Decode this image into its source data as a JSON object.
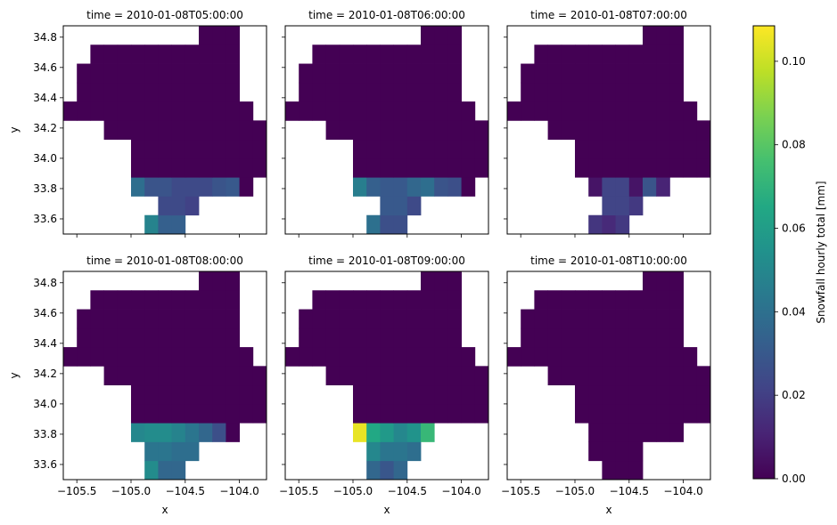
{
  "chart_data": {
    "type": "heatmap",
    "colormap": "viridis",
    "x_ticks": [
      -105.5,
      -105.0,
      -104.5,
      -104.0
    ],
    "x_tick_labels": [
      "−105.5",
      "−105.0",
      "−104.5",
      "−104.0"
    ],
    "y_ticks": [
      33.6,
      33.8,
      34.0,
      34.2,
      34.4,
      34.6,
      34.8
    ],
    "y_tick_labels": [
      "33.6",
      "33.8",
      "34.0",
      "34.2",
      "34.4",
      "34.6",
      "34.8"
    ],
    "xlabel": "x",
    "ylabel": "y",
    "xlim": [
      -105.625,
      -103.75
    ],
    "ylim": [
      33.5,
      34.875
    ],
    "grid_x0": -105.625,
    "grid_y0": 33.5,
    "cell_dx": 0.125,
    "cell_dy": 0.125,
    "colorbar": {
      "label": "Snowfall hourly total [mm]",
      "range": [
        0,
        0.1085
      ],
      "ticks": [
        0.0,
        0.02,
        0.04,
        0.06,
        0.08,
        0.1
      ],
      "tick_labels": [
        "0.00",
        "0.02",
        "0.04",
        "0.06",
        "0.08",
        "0.10"
      ]
    },
    "panels": [
      {
        "title": "time = 2010-01-08T05:00:00",
        "rows": [
          [
            null,
            null,
            null,
            null,
            null,
            null,
            0.048,
            0.033,
            0.033,
            null,
            null,
            null,
            null,
            null,
            null
          ],
          [
            null,
            null,
            null,
            null,
            null,
            null,
            null,
            0.024,
            0.024,
            0.021,
            null,
            null,
            null,
            null,
            null
          ],
          [
            null,
            null,
            null,
            null,
            null,
            0.039,
            0.028,
            0.028,
            0.024,
            0.024,
            0.024,
            0.028,
            0.03,
            0,
            null
          ],
          [
            null,
            null,
            null,
            null,
            null,
            0,
            0,
            0,
            0,
            0,
            0,
            0,
            0,
            0,
            0
          ],
          [
            null,
            null,
            null,
            null,
            null,
            0,
            0,
            0,
            0,
            0,
            0,
            0,
            0,
            0,
            0
          ],
          [
            null,
            null,
            null,
            0,
            0,
            0,
            0,
            0,
            0,
            0,
            0,
            0,
            0,
            0,
            0
          ],
          [
            0,
            0,
            0,
            0,
            0,
            0,
            0,
            0,
            0,
            0,
            0,
            0,
            0,
            0,
            null
          ],
          [
            null,
            0,
            0,
            0,
            0,
            0,
            0,
            0,
            0,
            0,
            0,
            0,
            0,
            null,
            null
          ],
          [
            null,
            0,
            0,
            0,
            0,
            0,
            0,
            0,
            0,
            0,
            0,
            0,
            0,
            null,
            null
          ],
          [
            null,
            null,
            0,
            0,
            0,
            0,
            0,
            0,
            0,
            0,
            0,
            0,
            0,
            null,
            null
          ],
          [
            null,
            null,
            null,
            null,
            null,
            null,
            null,
            null,
            null,
            null,
            0,
            0,
            0,
            null,
            null
          ]
        ]
      },
      {
        "title": "time = 2010-01-08T06:00:00",
        "rows": [
          [
            null,
            null,
            null,
            null,
            null,
            null,
            0.04,
            0.026,
            0.026,
            null,
            null,
            null,
            null,
            null,
            null
          ],
          [
            null,
            null,
            null,
            null,
            null,
            null,
            null,
            0.03,
            0.03,
            0.024,
            null,
            null,
            null,
            null,
            null
          ],
          [
            null,
            null,
            null,
            null,
            null,
            0.046,
            0.033,
            0.03,
            0.03,
            0.036,
            0.039,
            0.028,
            0.026,
            0,
            null
          ],
          [
            null,
            null,
            null,
            null,
            null,
            0,
            0,
            0,
            0,
            0,
            0,
            0,
            0,
            0,
            0
          ],
          [
            null,
            null,
            null,
            null,
            null,
            0,
            0,
            0,
            0,
            0,
            0,
            0,
            0,
            0,
            0
          ],
          [
            null,
            null,
            null,
            0,
            0,
            0,
            0,
            0,
            0,
            0,
            0,
            0,
            0,
            0,
            0
          ],
          [
            0,
            0,
            0,
            0,
            0,
            0,
            0,
            0,
            0,
            0,
            0,
            0,
            0,
            0,
            null
          ],
          [
            null,
            0,
            0,
            0,
            0,
            0,
            0,
            0,
            0,
            0,
            0,
            0,
            0,
            null,
            null
          ],
          [
            null,
            0,
            0,
            0,
            0,
            0,
            0,
            0,
            0,
            0,
            0,
            0,
            0,
            null,
            null
          ],
          [
            null,
            null,
            0,
            0,
            0,
            0,
            0,
            0,
            0,
            0,
            0,
            0,
            0,
            null,
            null
          ],
          [
            null,
            null,
            null,
            null,
            null,
            null,
            null,
            null,
            null,
            null,
            0,
            0,
            0,
            null,
            null
          ]
        ]
      },
      {
        "title": "time = 2010-01-08T07:00:00",
        "rows": [
          [
            null,
            null,
            null,
            null,
            null,
            null,
            0.017,
            0.013,
            0.018,
            null,
            null,
            null,
            null,
            null,
            null
          ],
          [
            null,
            null,
            null,
            null,
            null,
            null,
            null,
            0.022,
            0.022,
            0.018,
            null,
            null,
            null,
            null,
            null
          ],
          [
            null,
            null,
            null,
            null,
            null,
            null,
            0.006,
            0.022,
            0.022,
            0.006,
            0.028,
            0.011,
            null,
            null,
            null
          ],
          [
            null,
            null,
            null,
            null,
            null,
            0,
            0,
            0,
            0,
            0,
            0,
            0,
            0,
            0,
            0
          ],
          [
            null,
            null,
            null,
            null,
            null,
            0,
            0,
            0,
            0,
            0,
            0,
            0,
            0,
            0,
            0
          ],
          [
            null,
            null,
            null,
            0,
            0,
            0,
            0,
            0,
            0,
            0,
            0,
            0,
            0,
            0,
            0
          ],
          [
            0,
            0,
            0,
            0,
            0,
            0,
            0,
            0,
            0,
            0,
            0,
            0,
            0,
            0,
            null
          ],
          [
            null,
            0,
            0,
            0,
            0,
            0,
            0,
            0,
            0,
            0,
            0,
            0,
            0,
            null,
            null
          ],
          [
            null,
            0,
            0,
            0,
            0,
            0,
            0,
            0,
            0,
            0,
            0,
            0,
            0,
            null,
            null
          ],
          [
            null,
            null,
            0,
            0,
            0,
            0,
            0,
            0,
            0,
            0,
            0,
            0,
            0,
            null,
            null
          ],
          [
            null,
            null,
            null,
            null,
            null,
            null,
            null,
            null,
            null,
            null,
            0,
            0,
            0,
            null,
            null
          ]
        ]
      },
      {
        "title": "time = 2010-01-08T08:00:00",
        "rows": [
          [
            null,
            null,
            null,
            null,
            null,
            null,
            0.052,
            0.036,
            0.036,
            null,
            null,
            null,
            null,
            null,
            null
          ],
          [
            null,
            null,
            null,
            null,
            null,
            null,
            0.042,
            0.042,
            0.039,
            0.039,
            null,
            null,
            null,
            null,
            null
          ],
          [
            null,
            null,
            null,
            null,
            null,
            0.05,
            0.052,
            0.052,
            0.048,
            0.042,
            0.036,
            0.026,
            0,
            null,
            null
          ],
          [
            null,
            null,
            null,
            null,
            null,
            0,
            0,
            0,
            0,
            0,
            0,
            0,
            0,
            0,
            0
          ],
          [
            null,
            null,
            null,
            null,
            null,
            0,
            0,
            0,
            0,
            0,
            0,
            0,
            0,
            0,
            0
          ],
          [
            null,
            null,
            null,
            0,
            0,
            0,
            0,
            0,
            0,
            0,
            0,
            0,
            0,
            0,
            0
          ],
          [
            0,
            0,
            0,
            0,
            0,
            0,
            0,
            0,
            0,
            0,
            0,
            0,
            0,
            0,
            null
          ],
          [
            null,
            0,
            0,
            0,
            0,
            0,
            0,
            0,
            0,
            0,
            0,
            0,
            0,
            null,
            null
          ],
          [
            null,
            0,
            0,
            0,
            0,
            0,
            0,
            0,
            0,
            0,
            0,
            0,
            0,
            null,
            null
          ],
          [
            null,
            null,
            0,
            0,
            0,
            0,
            0,
            0,
            0,
            0,
            0,
            0,
            0,
            null,
            null
          ],
          [
            null,
            null,
            null,
            null,
            null,
            null,
            null,
            null,
            null,
            null,
            0,
            0,
            0,
            null,
            null
          ]
        ]
      },
      {
        "title": "time = 2010-01-08T09:00:00",
        "rows": [
          [
            null,
            null,
            null,
            null,
            null,
            null,
            0.036,
            0.029,
            0.036,
            null,
            null,
            null,
            null,
            null,
            null
          ],
          [
            null,
            null,
            null,
            null,
            null,
            null,
            0.05,
            0.042,
            0.042,
            0.039,
            null,
            null,
            null,
            null,
            null
          ],
          [
            null,
            null,
            null,
            null,
            null,
            0.105,
            0.065,
            0.058,
            0.05,
            0.055,
            0.072,
            null,
            null,
            null,
            null
          ],
          [
            null,
            null,
            null,
            null,
            null,
            0,
            0,
            0,
            0,
            0,
            0,
            0,
            0,
            0,
            0
          ],
          [
            null,
            null,
            null,
            null,
            null,
            0,
            0,
            0,
            0,
            0,
            0,
            0,
            0,
            0,
            0
          ],
          [
            null,
            null,
            null,
            0,
            0,
            0,
            0,
            0,
            0,
            0,
            0,
            0,
            0,
            0,
            0
          ],
          [
            0,
            0,
            0,
            0,
            0,
            0,
            0,
            0,
            0,
            0,
            0,
            0,
            0,
            0,
            null
          ],
          [
            null,
            0,
            0,
            0,
            0,
            0,
            0,
            0,
            0,
            0,
            0,
            0,
            0,
            null,
            null
          ],
          [
            null,
            0,
            0,
            0,
            0,
            0,
            0,
            0,
            0,
            0,
            0,
            0,
            0,
            null,
            null
          ],
          [
            null,
            null,
            0,
            0,
            0,
            0,
            0,
            0,
            0,
            0,
            0,
            0,
            0,
            null,
            null
          ],
          [
            null,
            null,
            null,
            null,
            null,
            null,
            null,
            null,
            null,
            null,
            0,
            0,
            0,
            null,
            null
          ]
        ]
      },
      {
        "title": "time = 2010-01-08T10:00:00",
        "rows": [
          [
            null,
            null,
            null,
            null,
            null,
            null,
            null,
            0,
            0,
            0,
            null,
            null,
            null,
            null,
            null
          ],
          [
            null,
            null,
            null,
            null,
            null,
            null,
            0,
            0,
            0,
            0,
            null,
            null,
            null,
            null,
            null
          ],
          [
            null,
            null,
            null,
            null,
            null,
            null,
            0,
            0,
            0,
            0,
            0,
            0,
            0,
            null,
            null
          ],
          [
            null,
            null,
            null,
            null,
            null,
            0,
            0,
            0,
            0,
            0,
            0,
            0,
            0,
            0,
            0
          ],
          [
            null,
            null,
            null,
            null,
            null,
            0,
            0,
            0,
            0,
            0,
            0,
            0,
            0,
            0,
            0
          ],
          [
            null,
            null,
            null,
            0,
            0,
            0,
            0,
            0,
            0,
            0,
            0,
            0,
            0,
            0,
            0
          ],
          [
            0,
            0,
            0,
            0,
            0,
            0,
            0,
            0,
            0,
            0,
            0,
            0,
            0,
            0,
            null
          ],
          [
            null,
            0,
            0,
            0,
            0,
            0,
            0,
            0,
            0,
            0,
            0,
            0,
            0,
            null,
            null
          ],
          [
            null,
            0,
            0,
            0,
            0,
            0,
            0,
            0,
            0,
            0,
            0,
            0,
            0,
            null,
            null
          ],
          [
            null,
            null,
            0,
            0,
            0,
            0,
            0,
            0,
            0,
            0,
            0,
            0,
            0,
            null,
            null
          ],
          [
            null,
            null,
            null,
            null,
            null,
            null,
            null,
            null,
            null,
            null,
            0,
            0,
            0,
            null,
            null
          ]
        ]
      }
    ]
  }
}
